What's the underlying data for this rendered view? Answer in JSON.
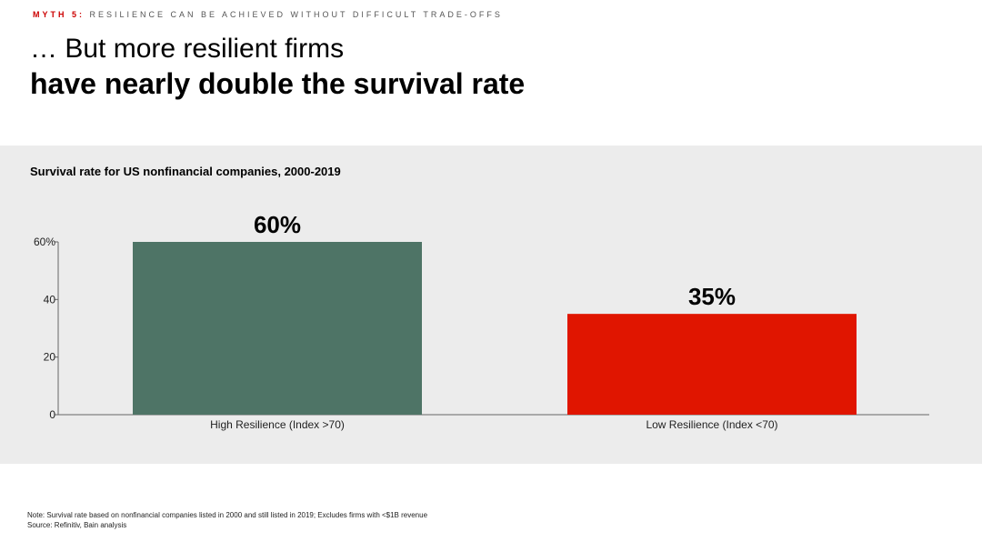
{
  "header": {
    "kicker_tag": "MYTH 5:",
    "kicker_text": "RESILIENCE CAN BE ACHIEVED WITHOUT DIFFICULT TRADE-OFFS",
    "title_line1": "… But more resilient firms",
    "title_line2": "have nearly double the survival rate"
  },
  "chart_data": {
    "type": "bar",
    "title": "Survival rate for US nonfinancial companies, 2000-2019",
    "categories": [
      "High Resilience (Index >70)",
      "Low Resilience (Index <70)"
    ],
    "values": [
      60,
      35
    ],
    "data_labels": [
      "60%",
      "35%"
    ],
    "colors": [
      "#4e7466",
      "#e01500"
    ],
    "ylim": [
      0,
      60
    ],
    "yticks": [
      0,
      20,
      40,
      60
    ],
    "ytick_labels": [
      "0",
      "20",
      "40",
      "60%"
    ],
    "xlabel": "",
    "ylabel": "",
    "grid": false
  },
  "footer": {
    "note": "Note: Survival rate based on nonfinancial companies listed in 2000 and still listed in 2019; Excludes firms with <$1B revenue",
    "source": "Source: Refinitiv, Bain analysis"
  }
}
